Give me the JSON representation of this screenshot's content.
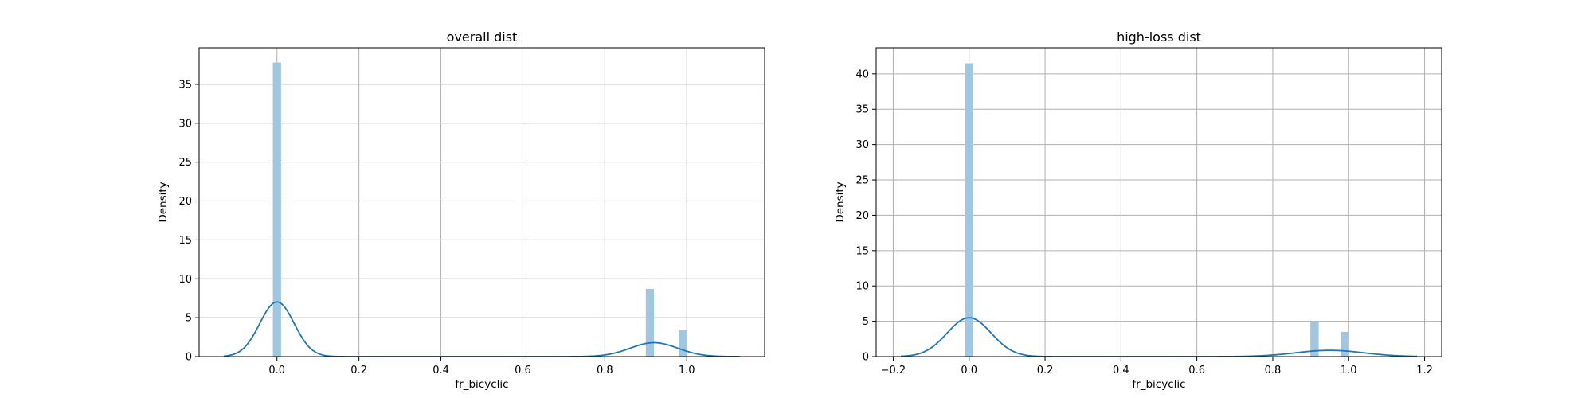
{
  "chart_data": [
    {
      "type": "bar",
      "title": "overall dist",
      "xlabel": "fr_bicyclic",
      "ylabel": "Density",
      "xlim": [
        -0.19,
        1.19
      ],
      "ylim": [
        0,
        39.7
      ],
      "xticks": [
        0.0,
        0.2,
        0.4,
        0.6,
        0.8,
        1.0
      ],
      "xtick_labels": [
        "0.0",
        "0.2",
        "0.4",
        "0.6",
        "0.8",
        "1.0"
      ],
      "yticks": [
        0,
        5,
        10,
        15,
        20,
        25,
        30,
        35
      ],
      "ytick_labels": [
        "0",
        "5",
        "10",
        "15",
        "20",
        "25",
        "30",
        "35"
      ],
      "grid": true,
      "bar_width": 0.02,
      "bars": [
        {
          "x": 0.0,
          "value": 37.8
        },
        {
          "x": 0.91,
          "value": 8.7
        },
        {
          "x": 0.99,
          "value": 3.4
        }
      ],
      "kde": [
        {
          "mu": 0.0,
          "sigma": 0.042,
          "weight": 0.74
        },
        {
          "mu": 0.92,
          "sigma": 0.058,
          "weight": 0.26
        }
      ],
      "kde_range": [
        -0.13,
        1.13
      ]
    },
    {
      "type": "bar",
      "title": "high-loss dist",
      "xlabel": "fr_bicyclic",
      "ylabel": "Density",
      "xlim": [
        -0.245,
        1.245
      ],
      "ylim": [
        0,
        43.7
      ],
      "xticks": [
        -0.2,
        0.0,
        0.2,
        0.4,
        0.6,
        0.8,
        1.0,
        1.2
      ],
      "xtick_labels": [
        "−0.2",
        "0.0",
        "0.2",
        "0.4",
        "0.6",
        "0.8",
        "1.0",
        "1.2"
      ],
      "yticks": [
        0,
        5,
        10,
        15,
        20,
        25,
        30,
        35,
        40
      ],
      "ytick_labels": [
        "0",
        "5",
        "10",
        "15",
        "20",
        "25",
        "30",
        "35",
        "40"
      ],
      "grid": true,
      "bar_width": 0.022,
      "bars": [
        {
          "x": 0.0,
          "value": 41.5
        },
        {
          "x": 0.91,
          "value": 4.9
        },
        {
          "x": 0.99,
          "value": 3.5
        }
      ],
      "kde": [
        {
          "mu": 0.0,
          "sigma": 0.058,
          "weight": 0.8
        },
        {
          "mu": 0.95,
          "sigma": 0.09,
          "weight": 0.2
        }
      ],
      "kde_range": [
        -0.18,
        1.18
      ]
    }
  ]
}
